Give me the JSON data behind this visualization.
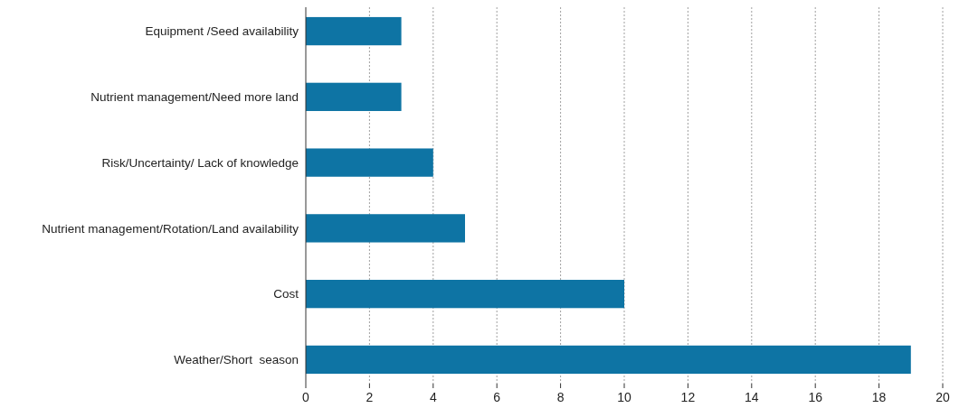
{
  "chart_data": {
    "type": "bar",
    "orientation": "horizontal",
    "categories": [
      "Equipment /Seed availability",
      "Nutrient management/Need more land",
      "Risk/Uncertainty/ Lack of knowledge",
      "Nutrient management/Rotation/Land availability",
      "Cost",
      "Weather/Short  season"
    ],
    "values": [
      3,
      3,
      4,
      5,
      10,
      19
    ],
    "color": "#0e74a4",
    "xlim": [
      0,
      20
    ],
    "xticks": [
      0,
      2,
      4,
      6,
      8,
      10,
      12,
      14,
      16,
      18,
      20
    ],
    "grid": "x"
  }
}
